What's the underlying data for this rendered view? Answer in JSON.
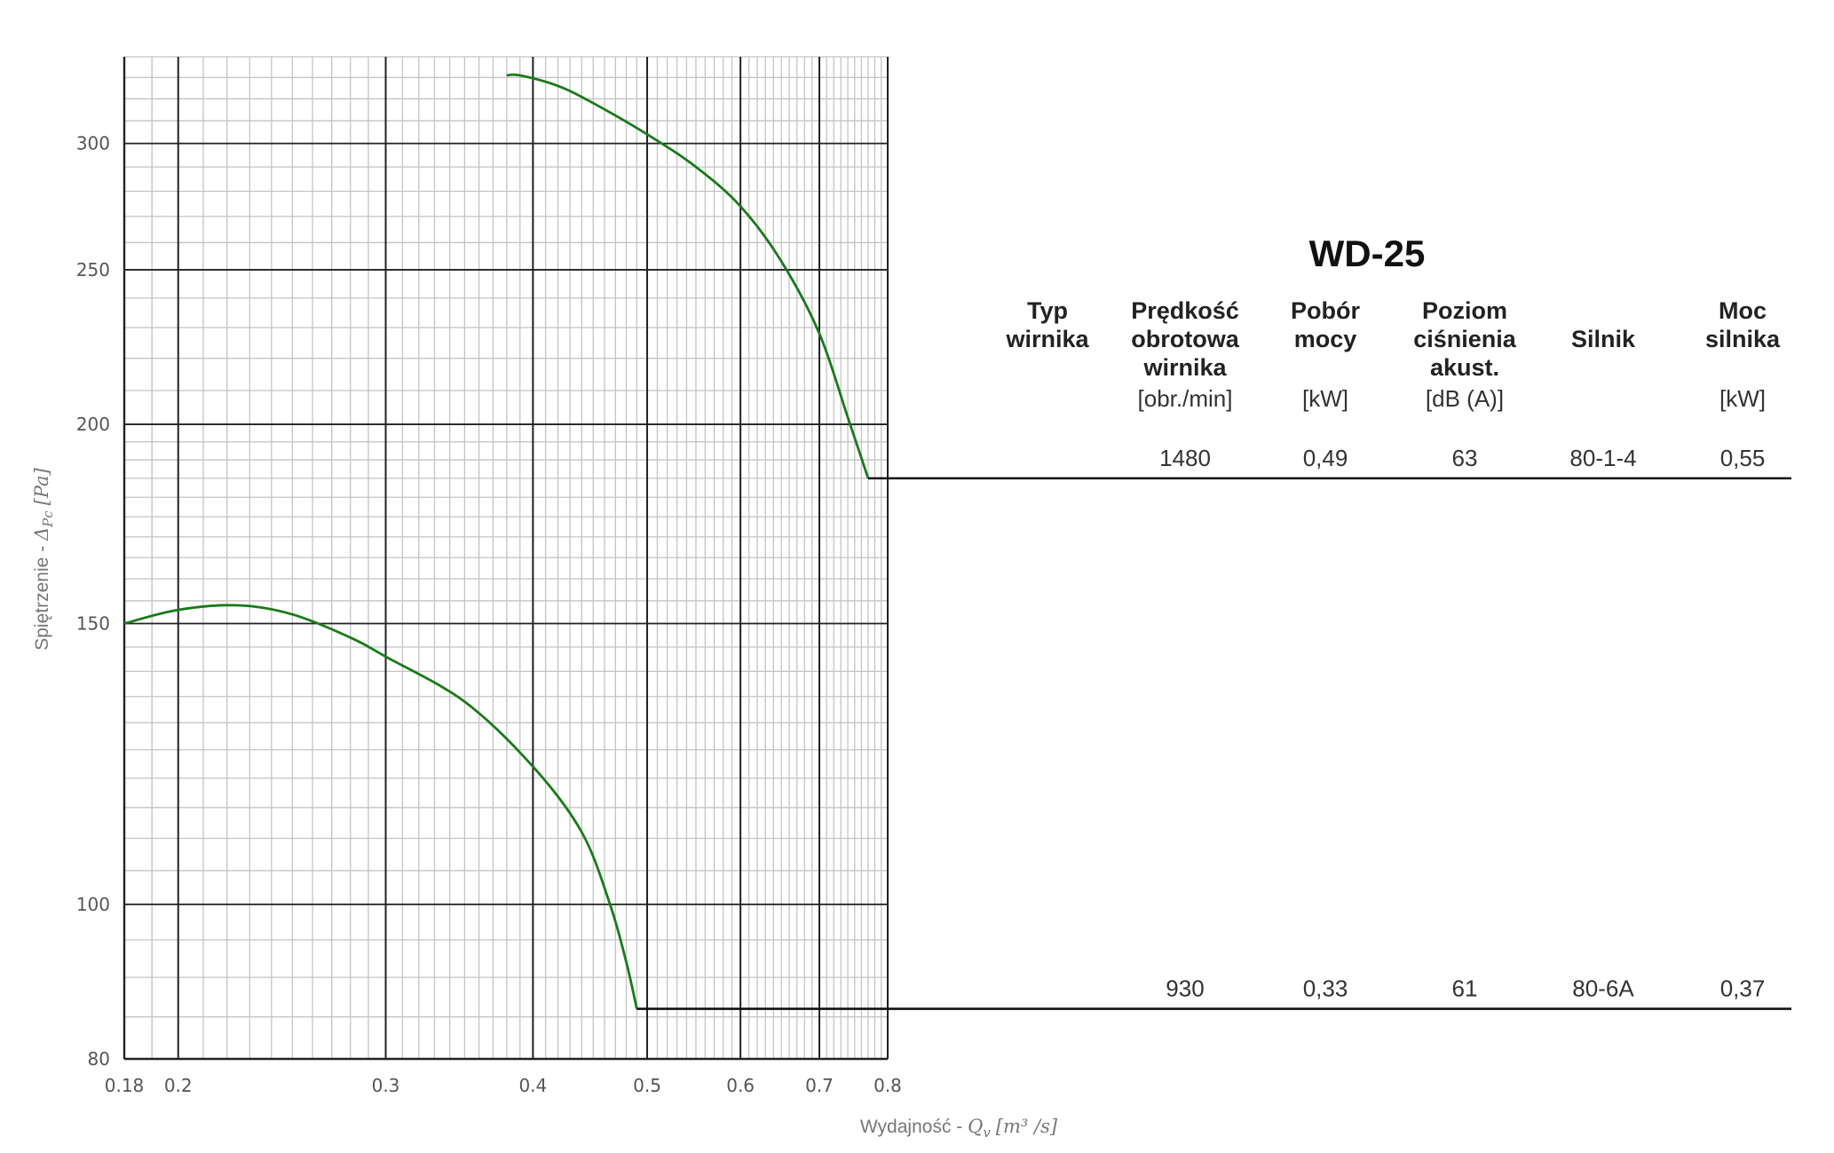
{
  "chart_data": {
    "type": "line",
    "title": "WD-25",
    "xlabel": {
      "text": "Wydajność - ",
      "symbol": "Q",
      "sub": "v",
      "unit": "[m³ /s]"
    },
    "ylabel": {
      "text": "Spiętrzenie - ",
      "symbol": "Δ",
      "sub": "Pc",
      "unit": "[Pa]"
    },
    "x_scale": "log",
    "y_scale": "log",
    "xlim": [
      0.18,
      0.8
    ],
    "ylim": [
      80,
      340
    ],
    "x_ticks": [
      0.18,
      0.2,
      0.3,
      0.4,
      0.5,
      0.6,
      0.7,
      0.8
    ],
    "x_tick_labels": [
      "0.18",
      "0.2",
      "0.3",
      "0.4",
      "0.5",
      "0.6",
      "0.7",
      "0.8"
    ],
    "y_ticks": [
      80,
      100,
      150,
      200,
      250,
      300
    ],
    "y_tick_labels": [
      "80",
      "100",
      "150",
      "200",
      "250",
      "300"
    ],
    "grid": true,
    "line_color": "#1a7a1a",
    "series": [
      {
        "rpm": "1480",
        "points": [
          [
            0.38,
            331
          ],
          [
            0.39,
            331
          ],
          [
            0.42,
            326
          ],
          [
            0.45,
            318
          ],
          [
            0.5,
            304
          ],
          [
            0.55,
            290
          ],
          [
            0.6,
            274
          ],
          [
            0.65,
            253
          ],
          [
            0.7,
            228
          ],
          [
            0.74,
            202
          ],
          [
            0.77,
            185
          ]
        ],
        "table_y": 185
      },
      {
        "rpm": "930",
        "points": [
          [
            0.18,
            150
          ],
          [
            0.2,
            153
          ],
          [
            0.225,
            154
          ],
          [
            0.25,
            152
          ],
          [
            0.28,
            147
          ],
          [
            0.3,
            143
          ],
          [
            0.35,
            134
          ],
          [
            0.4,
            122
          ],
          [
            0.44,
            111
          ],
          [
            0.465,
            100
          ],
          [
            0.48,
            92
          ],
          [
            0.49,
            86
          ]
        ],
        "table_y": 86
      }
    ]
  },
  "table": {
    "headers": [
      {
        "lines": [
          "Typ",
          "wirnika"
        ],
        "unit": ""
      },
      {
        "lines": [
          "Prędkość",
          "obrotowa",
          "wirnika"
        ],
        "unit": "[obr./min]"
      },
      {
        "lines": [
          "Pobór",
          "mocy"
        ],
        "unit": "[kW]"
      },
      {
        "lines": [
          "Poziom",
          "ciśnienia",
          "akust."
        ],
        "unit": "[dB (A)]"
      },
      {
        "lines": [
          "Silnik"
        ],
        "unit": ""
      },
      {
        "lines": [
          "Moc",
          "silnika"
        ],
        "unit": "[kW]"
      }
    ],
    "rows": [
      [
        "",
        "1480",
        "0,49",
        "63",
        "80-1-4",
        "0,55"
      ],
      [
        "",
        "930",
        "0,33",
        "61",
        "80-6A",
        "0,37"
      ]
    ]
  }
}
